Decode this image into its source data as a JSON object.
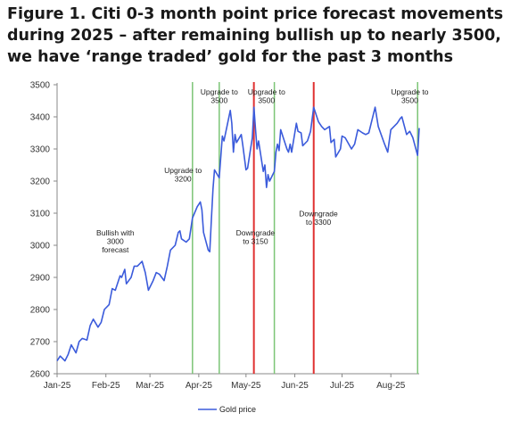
{
  "title": "Figure 1. Citi 0-3 month point price forecast movements during 2025 – after remaining bullish up to nearly 3500, we have ‘range traded’ gold for the past 3 months",
  "colors": {
    "series": "#3b5bdb",
    "upgrade": "#7cc576",
    "downgrade": "#e03131",
    "axis": "#888888"
  },
  "chart_data": {
    "type": "line",
    "title": "Figure 1. Citi 0-3 month point price forecast movements during 2025 – after remaining bullish up to nearly 3500, we have ‘range traded’ gold for the past 3 months",
    "xlabel": "",
    "ylabel": "",
    "ylim": [
      2600,
      3500
    ],
    "yticks": [
      2600,
      2700,
      2800,
      2900,
      3000,
      3100,
      3200,
      3300,
      3400,
      3500
    ],
    "xlim": [
      "2025-01-01",
      "2025-08-19"
    ],
    "xticks": [
      {
        "date": "2025-01-01",
        "label": "Jan-25"
      },
      {
        "date": "2025-02-01",
        "label": "Feb-25"
      },
      {
        "date": "2025-03-01",
        "label": "Mar-25"
      },
      {
        "date": "2025-04-01",
        "label": "Apr-25"
      },
      {
        "date": "2025-05-01",
        "label": "May-25"
      },
      {
        "date": "2025-06-01",
        "label": "Jun-25"
      },
      {
        "date": "2025-07-01",
        "label": "Jul-25"
      },
      {
        "date": "2025-08-01",
        "label": "Aug-25"
      }
    ],
    "legend": "bottom-center",
    "grid": false,
    "series": [
      {
        "name": "Gold price",
        "points": [
          [
            "2025-01-01",
            2640
          ],
          [
            "2025-01-03",
            2655
          ],
          [
            "2025-01-06",
            2640
          ],
          [
            "2025-01-08",
            2660
          ],
          [
            "2025-01-10",
            2690
          ],
          [
            "2025-01-13",
            2665
          ],
          [
            "2025-01-15",
            2700
          ],
          [
            "2025-01-17",
            2710
          ],
          [
            "2025-01-20",
            2705
          ],
          [
            "2025-01-22",
            2750
          ],
          [
            "2025-01-24",
            2770
          ],
          [
            "2025-01-27",
            2745
          ],
          [
            "2025-01-29",
            2760
          ],
          [
            "2025-01-31",
            2800
          ],
          [
            "2025-02-03",
            2815
          ],
          [
            "2025-02-05",
            2865
          ],
          [
            "2025-02-07",
            2860
          ],
          [
            "2025-02-10",
            2905
          ],
          [
            "2025-02-11",
            2900
          ],
          [
            "2025-02-13",
            2925
          ],
          [
            "2025-02-14",
            2880
          ],
          [
            "2025-02-17",
            2900
          ],
          [
            "2025-02-19",
            2935
          ],
          [
            "2025-02-21",
            2935
          ],
          [
            "2025-02-24",
            2950
          ],
          [
            "2025-02-26",
            2915
          ],
          [
            "2025-02-28",
            2860
          ],
          [
            "2025-03-03",
            2890
          ],
          [
            "2025-03-05",
            2915
          ],
          [
            "2025-03-07",
            2910
          ],
          [
            "2025-03-10",
            2890
          ],
          [
            "2025-03-12",
            2935
          ],
          [
            "2025-03-14",
            2985
          ],
          [
            "2025-03-17",
            3000
          ],
          [
            "2025-03-19",
            3040
          ],
          [
            "2025-03-20",
            3045
          ],
          [
            "2025-03-21",
            3020
          ],
          [
            "2025-03-24",
            3010
          ],
          [
            "2025-03-26",
            3020
          ],
          [
            "2025-03-28",
            3085
          ],
          [
            "2025-03-31",
            3120
          ],
          [
            "2025-04-02",
            3135
          ],
          [
            "2025-04-03",
            3110
          ],
          [
            "2025-04-04",
            3040
          ],
          [
            "2025-04-07",
            2985
          ],
          [
            "2025-04-08",
            2980
          ],
          [
            "2025-04-09",
            3080
          ],
          [
            "2025-04-10",
            3175
          ],
          [
            "2025-04-11",
            3235
          ],
          [
            "2025-04-14",
            3210
          ],
          [
            "2025-04-16",
            3340
          ],
          [
            "2025-04-17",
            3325
          ],
          [
            "2025-04-21",
            3420
          ],
          [
            "2025-04-22",
            3380
          ],
          [
            "2025-04-23",
            3290
          ],
          [
            "2025-04-24",
            3345
          ],
          [
            "2025-04-25",
            3320
          ],
          [
            "2025-04-28",
            3345
          ],
          [
            "2025-04-29",
            3310
          ],
          [
            "2025-05-01",
            3235
          ],
          [
            "2025-05-02",
            3240
          ],
          [
            "2025-05-05",
            3335
          ],
          [
            "2025-05-06",
            3430
          ],
          [
            "2025-05-07",
            3365
          ],
          [
            "2025-05-08",
            3300
          ],
          [
            "2025-05-09",
            3325
          ],
          [
            "2025-05-12",
            3230
          ],
          [
            "2025-05-13",
            3250
          ],
          [
            "2025-05-14",
            3180
          ],
          [
            "2025-05-15",
            3220
          ],
          [
            "2025-05-16",
            3200
          ],
          [
            "2025-05-19",
            3230
          ],
          [
            "2025-05-20",
            3290
          ],
          [
            "2025-05-21",
            3315
          ],
          [
            "2025-05-22",
            3295
          ],
          [
            "2025-05-23",
            3360
          ],
          [
            "2025-05-27",
            3300
          ],
          [
            "2025-05-28",
            3290
          ],
          [
            "2025-05-29",
            3315
          ],
          [
            "2025-05-30",
            3290
          ],
          [
            "2025-06-02",
            3380
          ],
          [
            "2025-06-03",
            3355
          ],
          [
            "2025-06-05",
            3350
          ],
          [
            "2025-06-06",
            3310
          ],
          [
            "2025-06-09",
            3325
          ],
          [
            "2025-06-11",
            3355
          ],
          [
            "2025-06-13",
            3430
          ],
          [
            "2025-06-16",
            3385
          ],
          [
            "2025-06-18",
            3370
          ],
          [
            "2025-06-20",
            3360
          ],
          [
            "2025-06-23",
            3370
          ],
          [
            "2025-06-24",
            3320
          ],
          [
            "2025-06-26",
            3330
          ],
          [
            "2025-06-27",
            3275
          ],
          [
            "2025-06-30",
            3300
          ],
          [
            "2025-07-01",
            3340
          ],
          [
            "2025-07-03",
            3335
          ],
          [
            "2025-07-07",
            3300
          ],
          [
            "2025-07-09",
            3315
          ],
          [
            "2025-07-11",
            3360
          ],
          [
            "2025-07-14",
            3350
          ],
          [
            "2025-07-16",
            3345
          ],
          [
            "2025-07-18",
            3350
          ],
          [
            "2025-07-22",
            3430
          ],
          [
            "2025-07-24",
            3370
          ],
          [
            "2025-07-28",
            3315
          ],
          [
            "2025-07-30",
            3290
          ],
          [
            "2025-08-01",
            3360
          ],
          [
            "2025-08-05",
            3380
          ],
          [
            "2025-08-07",
            3395
          ],
          [
            "2025-08-08",
            3400
          ],
          [
            "2025-08-11",
            3345
          ],
          [
            "2025-08-13",
            3355
          ],
          [
            "2025-08-15",
            3335
          ],
          [
            "2025-08-18",
            3280
          ],
          [
            "2025-08-19",
            3365
          ]
        ]
      }
    ],
    "vlines": [
      {
        "date": "2025-03-28",
        "kind": "upgrade"
      },
      {
        "date": "2025-04-14",
        "kind": "upgrade"
      },
      {
        "date": "2025-05-06",
        "kind": "downgrade"
      },
      {
        "date": "2025-05-19",
        "kind": "upgrade"
      },
      {
        "date": "2025-06-13",
        "kind": "downgrade"
      },
      {
        "date": "2025-08-18",
        "kind": "upgrade"
      }
    ],
    "annotations": [
      {
        "lines": [
          "Bullish with",
          "3000",
          "forecast"
        ],
        "date": "2025-02-07",
        "value": 3030
      },
      {
        "lines": [
          "Upgrade to",
          "3200"
        ],
        "date": "2025-03-22",
        "value": 3225
      },
      {
        "lines": [
          "Upgrade to",
          "3500"
        ],
        "date": "2025-04-14",
        "value": 3470
      },
      {
        "lines": [
          "Upgrade to",
          "3500"
        ],
        "date": "2025-05-14",
        "value": 3470
      },
      {
        "lines": [
          "Downgrade",
          "to 3150"
        ],
        "date": "2025-05-07",
        "value": 3030
      },
      {
        "lines": [
          "Downgrade",
          "to 3300"
        ],
        "date": "2025-06-16",
        "value": 3090
      },
      {
        "lines": [
          "Upgrade to",
          "3500"
        ],
        "date": "2025-08-13",
        "value": 3470
      }
    ]
  }
}
